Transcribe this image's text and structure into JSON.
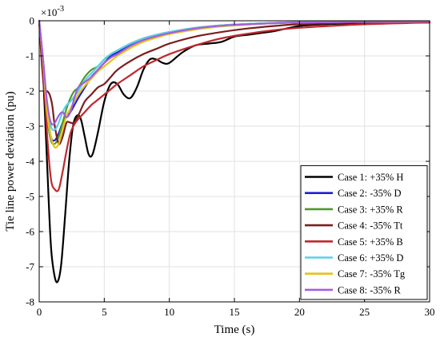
{
  "chart_data": {
    "type": "line",
    "xlabel": "Time (s)",
    "ylabel": "Tie line power deviation (pu)",
    "y_exponent_label": "×10",
    "y_exponent_power": "-3",
    "xlim": [
      0,
      30
    ],
    "ylim": [
      -8,
      0
    ],
    "xticks": [
      0,
      5,
      10,
      15,
      20,
      25,
      30
    ],
    "yticks": [
      0,
      -1,
      -2,
      -3,
      -4,
      -5,
      -6,
      -7,
      -8
    ],
    "grid": true,
    "legend_position": "lower-right",
    "series": [
      {
        "name": "Case 1: +35% H",
        "color": "#000000",
        "x": [
          0,
          0.3,
          0.6,
          0.9,
          1.2,
          1.45,
          1.7,
          2.0,
          2.3,
          2.6,
          2.9,
          3.2,
          3.5,
          3.8,
          4.1,
          4.5,
          5.0,
          5.5,
          6.0,
          6.5,
          7.0,
          7.5,
          8.0,
          8.5,
          9.0,
          9.5,
          10.0,
          11.0,
          12.0,
          13.0,
          14.0,
          15.0,
          16.0,
          17.0,
          18.0,
          20.0,
          22.0,
          25.0,
          30.0
        ],
        "y": [
          0,
          -1.5,
          -4.0,
          -6.4,
          -7.3,
          -7.4,
          -6.9,
          -5.5,
          -4.0,
          -3.0,
          -2.7,
          -2.8,
          -3.3,
          -3.8,
          -3.8,
          -3.2,
          -2.3,
          -1.8,
          -1.8,
          -2.1,
          -2.2,
          -1.9,
          -1.4,
          -1.1,
          -1.1,
          -1.2,
          -1.2,
          -0.9,
          -0.7,
          -0.65,
          -0.6,
          -0.45,
          -0.4,
          -0.35,
          -0.3,
          -0.15,
          -0.1,
          -0.07,
          -0.05
        ]
      },
      {
        "name": "Case 2: -35% D",
        "color": "#1f1fd6",
        "x": [
          0,
          0.3,
          0.6,
          0.9,
          1.2,
          1.5,
          1.8,
          2.1,
          2.4,
          2.7,
          3.0,
          3.5,
          4.0,
          4.5,
          5.0,
          5.5,
          6.0,
          7.0,
          8.0,
          9.0,
          10.0,
          12.0,
          14.0,
          16.0,
          18.0,
          20.0,
          25.0,
          30.0
        ],
        "y": [
          0,
          -1.2,
          -2.5,
          -3.3,
          -3.4,
          -3.2,
          -2.9,
          -2.7,
          -2.6,
          -2.4,
          -2.2,
          -1.9,
          -1.6,
          -1.4,
          -1.2,
          -1.0,
          -0.9,
          -0.7,
          -0.55,
          -0.45,
          -0.35,
          -0.22,
          -0.15,
          -0.1,
          -0.07,
          -0.05,
          -0.03,
          -0.02
        ]
      },
      {
        "name": "Case 3: +35% R",
        "color": "#4c9a2a",
        "x": [
          0,
          0.3,
          0.6,
          0.9,
          1.2,
          1.5,
          1.8,
          2.1,
          2.4,
          2.7,
          3.0,
          3.5,
          4.0,
          4.5,
          5.0,
          5.5,
          6.0,
          7.0,
          8.0,
          9.0,
          10.0,
          12.0,
          14.0,
          16.0,
          18.0,
          20.0,
          25.0,
          30.0
        ],
        "y": [
          0,
          -1.3,
          -2.7,
          -3.4,
          -3.5,
          -3.3,
          -2.9,
          -2.5,
          -2.2,
          -2.0,
          -1.9,
          -1.6,
          -1.4,
          -1.3,
          -1.1,
          -0.95,
          -0.85,
          -0.65,
          -0.5,
          -0.4,
          -0.32,
          -0.2,
          -0.13,
          -0.09,
          -0.06,
          -0.04,
          -0.03,
          -0.02
        ]
      },
      {
        "name": "Case 4: -35% Tt",
        "color": "#7a1f1f",
        "x": [
          0,
          0.2,
          0.4,
          0.6,
          0.8,
          1.0,
          1.2,
          1.5,
          1.8,
          2.1,
          2.4,
          2.7,
          3.0,
          3.5,
          4.0,
          4.5,
          5.0,
          5.5,
          6.0,
          7.0,
          8.0,
          9.0,
          10.0,
          12.0,
          14.0,
          16.0,
          18.0,
          20.0,
          25.0,
          30.0
        ],
        "y": [
          0,
          -1.2,
          -2.0,
          -2.0,
          -2.1,
          -2.4,
          -3.0,
          -3.5,
          -3.3,
          -2.9,
          -2.9,
          -2.9,
          -2.7,
          -2.3,
          -2.1,
          -1.9,
          -1.8,
          -1.6,
          -1.4,
          -1.15,
          -0.95,
          -0.8,
          -0.65,
          -0.45,
          -0.32,
          -0.22,
          -0.15,
          -0.1,
          -0.05,
          -0.03
        ]
      },
      {
        "name": "Case 5: +35% B",
        "color": "#c0282d",
        "x": [
          0,
          0.3,
          0.6,
          0.9,
          1.2,
          1.5,
          1.8,
          2.1,
          2.4,
          2.7,
          3.0,
          3.5,
          4.0,
          4.5,
          5.0,
          5.5,
          6.0,
          7.0,
          8.0,
          9.0,
          10.0,
          12.0,
          14.0,
          16.0,
          18.0,
          20.0,
          25.0,
          30.0
        ],
        "y": [
          0,
          -1.3,
          -3.2,
          -4.5,
          -4.8,
          -4.8,
          -4.3,
          -3.7,
          -3.2,
          -2.95,
          -2.8,
          -2.6,
          -2.4,
          -2.25,
          -2.1,
          -1.95,
          -1.8,
          -1.55,
          -1.3,
          -1.12,
          -0.95,
          -0.7,
          -0.5,
          -0.37,
          -0.27,
          -0.2,
          -0.1,
          -0.05
        ]
      },
      {
        "name": "Case 6: +35% D",
        "color": "#5ad1e6",
        "x": [
          0,
          0.3,
          0.6,
          0.9,
          1.2,
          1.5,
          1.8,
          2.1,
          2.4,
          2.7,
          3.0,
          3.5,
          4.0,
          4.5,
          5.0,
          5.5,
          6.0,
          7.0,
          8.0,
          9.0,
          10.0,
          12.0,
          14.0,
          16.0,
          18.0,
          20.0,
          25.0,
          30.0
        ],
        "y": [
          0,
          -1.1,
          -2.3,
          -3.0,
          -3.1,
          -2.9,
          -2.6,
          -2.4,
          -2.3,
          -2.15,
          -2.0,
          -1.7,
          -1.5,
          -1.3,
          -1.1,
          -0.95,
          -0.85,
          -0.65,
          -0.5,
          -0.4,
          -0.32,
          -0.2,
          -0.13,
          -0.09,
          -0.06,
          -0.04,
          -0.03,
          -0.02
        ]
      },
      {
        "name": "Case 7: -35% Tg",
        "color": "#e8c21a",
        "x": [
          0,
          0.3,
          0.6,
          0.9,
          1.2,
          1.5,
          1.8,
          2.1,
          2.4,
          2.7,
          3.0,
          3.5,
          4.0,
          4.5,
          5.0,
          5.5,
          6.0,
          7.0,
          8.0,
          9.0,
          10.0,
          12.0,
          14.0,
          16.0,
          18.0,
          20.0,
          25.0,
          30.0
        ],
        "y": [
          0,
          -1.2,
          -2.6,
          -3.3,
          -3.6,
          -3.5,
          -3.1,
          -2.7,
          -2.5,
          -2.3,
          -2.1,
          -1.85,
          -1.65,
          -1.45,
          -1.3,
          -1.15,
          -1.0,
          -0.78,
          -0.6,
          -0.48,
          -0.38,
          -0.25,
          -0.16,
          -0.11,
          -0.07,
          -0.05,
          -0.03,
          -0.02
        ]
      },
      {
        "name": "Case 8: -35% R",
        "color": "#a35ee0",
        "x": [
          0,
          0.3,
          0.6,
          0.9,
          1.2,
          1.5,
          1.8,
          2.1,
          2.4,
          2.7,
          3.0,
          3.5,
          4.0,
          4.5,
          5.0,
          5.5,
          6.0,
          7.0,
          8.0,
          9.0,
          10.0,
          12.0,
          14.0,
          16.0,
          18.0,
          20.0,
          25.0,
          30.0
        ],
        "y": [
          0,
          -1.1,
          -2.3,
          -2.9,
          -2.9,
          -2.7,
          -2.6,
          -2.75,
          -2.6,
          -2.2,
          -1.9,
          -1.75,
          -1.6,
          -1.4,
          -1.2,
          -1.05,
          -0.95,
          -0.72,
          -0.55,
          -0.44,
          -0.35,
          -0.22,
          -0.14,
          -0.1,
          -0.07,
          -0.05,
          -0.03,
          -0.02
        ]
      }
    ]
  }
}
